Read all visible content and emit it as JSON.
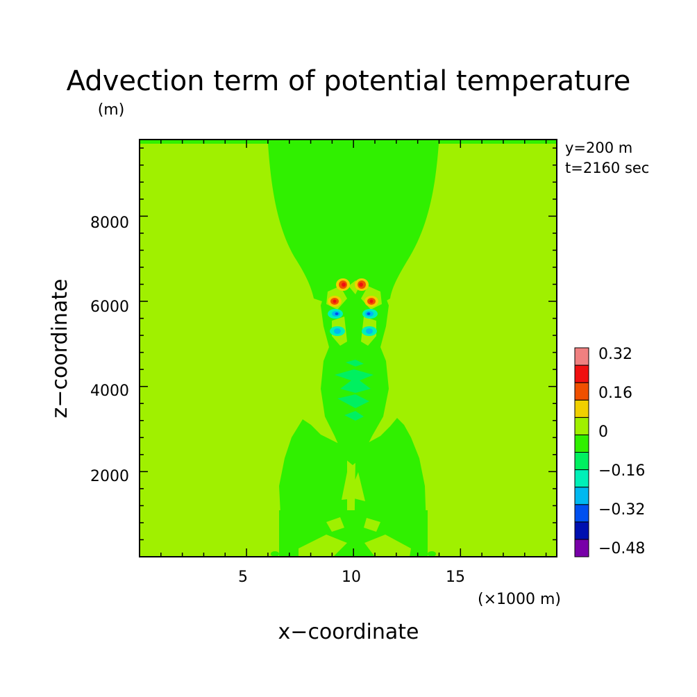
{
  "chart_data": {
    "type": "heatmap",
    "title": "Advection term of potential temperature",
    "xlabel": "x−coordinate",
    "ylabel": "z−coordinate",
    "y_unit": "(m)",
    "x_unit": "(×1000 m)",
    "annotations": [
      "y=200 m",
      "t=2160 sec"
    ],
    "x_range": [
      0,
      19.5
    ],
    "y_range": [
      0,
      9800
    ],
    "x_ticks": [
      5,
      10,
      15
    ],
    "x_tick_labels": [
      "5",
      "10",
      "15"
    ],
    "y_ticks": [
      2000,
      4000,
      6000,
      8000
    ],
    "y_tick_labels": [
      "2000",
      "4000",
      "6000",
      "8000"
    ],
    "colorbar": {
      "levels": [
        -0.56,
        -0.48,
        -0.4,
        -0.32,
        -0.24,
        -0.16,
        -0.08,
        0,
        0.08,
        0.16,
        0.24,
        0.32,
        0.4
      ],
      "colors": [
        "#7800a8",
        "#0010b0",
        "#0050f0",
        "#00b8f0",
        "#00f0b8",
        "#00f060",
        "#30f000",
        "#a0f000",
        "#f0d000",
        "#f05000",
        "#f01010",
        "#f08080"
      ],
      "tick_labels": [
        "0.32",
        "0.16",
        "0",
        "−0.16",
        "−0.32",
        "−0.48"
      ]
    },
    "features": [
      {
        "kind": "background",
        "value_class": "0 to 0.08"
      },
      {
        "kind": "upper plume",
        "x_range": [
          6.2,
          14.1
        ],
        "z_range": [
          6000,
          9800
        ],
        "value_class": "-0.08 to 0"
      },
      {
        "kind": "maxima",
        "x": [
          9.7,
          10.6,
          9.2,
          11.0
        ],
        "z": [
          6500,
          6500,
          6100,
          6100
        ],
        "value_class": "0.16 to 0.32"
      },
      {
        "kind": "minima",
        "x": [
          9.3,
          10.9,
          9.3,
          10.9
        ],
        "z": [
          5800,
          5800,
          5400,
          5400
        ],
        "value_class": "-0.40 to -0.16"
      },
      {
        "kind": "central column",
        "x_range": [
          8.5,
          11.6
        ],
        "z_range": [
          3100,
          5900
        ],
        "value_class": "-0.16 to 0"
      },
      {
        "kind": "lower lobes",
        "x_range": [
          6.6,
          14.1
        ],
        "z_range": [
          0,
          3300
        ],
        "value_class": "-0.08 to 0"
      }
    ]
  }
}
